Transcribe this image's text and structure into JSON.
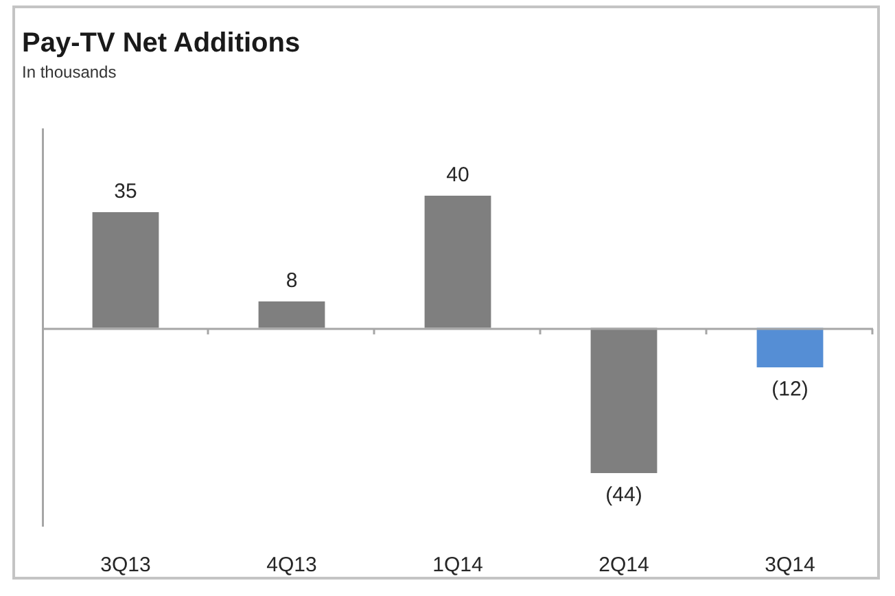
{
  "chart_data": {
    "type": "bar",
    "title": "Pay-TV Net Additions",
    "subtitle": "In thousands",
    "categories": [
      "3Q13",
      "4Q13",
      "1Q14",
      "2Q14",
      "3Q14"
    ],
    "values": [
      35,
      8,
      40,
      -44,
      -12
    ],
    "colors": [
      "#7f7f7f",
      "#7f7f7f",
      "#7f7f7f",
      "#7f7f7f",
      "#558ed5"
    ],
    "value_labels": [
      "35",
      "8",
      "40",
      "(44)",
      "(12)"
    ],
    "ylim": [
      -60,
      60
    ],
    "tick_labels": "x",
    "grid": false,
    "legend": false
  }
}
